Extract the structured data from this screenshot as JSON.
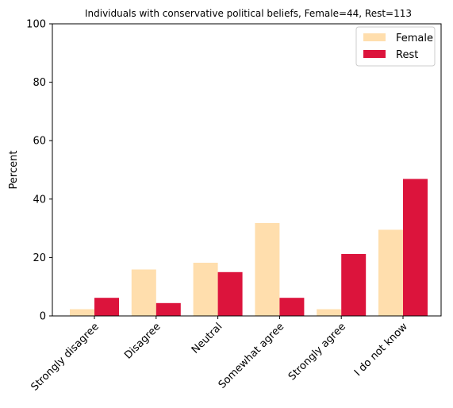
{
  "chart_data": {
    "type": "bar",
    "title": "Individuals with conservative political beliefs, Female=44, Rest=113",
    "xlabel": "",
    "ylabel": "Percent",
    "ylim": [
      0,
      100
    ],
    "yticks": [
      "0",
      "20",
      "40",
      "60",
      "80",
      "100"
    ],
    "categories": [
      "Strongly disagree",
      "Disagree",
      "Neutral",
      "Somewhat agree",
      "Strongly agree",
      "I do not know"
    ],
    "series": [
      {
        "name": "Female",
        "color": "#FFDEAD",
        "values": [
          2.3,
          15.9,
          18.2,
          31.8,
          2.3,
          29.5
        ]
      },
      {
        "name": "Rest",
        "color": "#DC143C",
        "values": [
          6.2,
          4.4,
          15.0,
          6.2,
          21.2,
          46.9
        ]
      }
    ],
    "legend_position": "top-right",
    "grid": false
  }
}
